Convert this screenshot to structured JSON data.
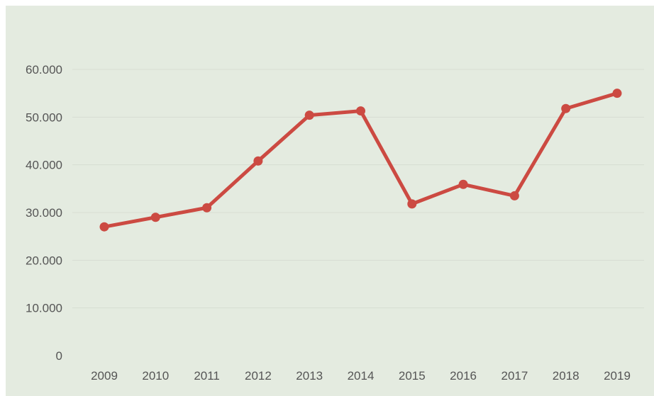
{
  "chart_data": {
    "type": "line",
    "title": "",
    "xlabel": "",
    "ylabel": "",
    "x": [
      "2009",
      "2010",
      "2011",
      "2012",
      "2013",
      "2014",
      "2015",
      "2016",
      "2017",
      "2018",
      "2019"
    ],
    "series": [
      {
        "values": [
          27000,
          29000,
          31000,
          40800,
          50400,
          51300,
          31800,
          35900,
          33500,
          51800,
          55000
        ]
      }
    ],
    "ylim": [
      0,
      60000
    ],
    "yticks": [
      0,
      10000,
      20000,
      30000,
      40000,
      50000,
      60000
    ],
    "ytick_labels": [
      "0",
      "10.000",
      "20.000",
      "30.000",
      "40.000",
      "50.000",
      "60.000"
    ],
    "grid": true,
    "legend": "none",
    "colors": {
      "background": "#e4ebe0",
      "line": "#cc4a42",
      "grid": "#d7ddd2",
      "text": "#555555"
    }
  }
}
